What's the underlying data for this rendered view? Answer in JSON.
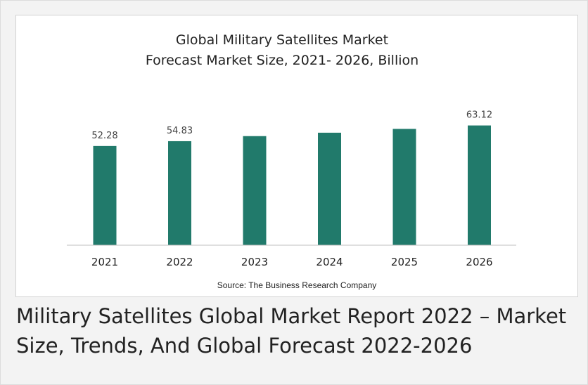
{
  "chart_data": {
    "type": "bar",
    "title": "Global Military Satellites Market",
    "subtitle": "Forecast Market Size, 2021- 2026, Billion",
    "categories": [
      "2021",
      "2022",
      "2023",
      "2024",
      "2025",
      "2026"
    ],
    "values": [
      52.28,
      54.83,
      57.5,
      59.3,
      61.3,
      63.12
    ],
    "data_labels": [
      "52.28",
      "54.83",
      "",
      "",
      "",
      "63.12"
    ],
    "source": "Source: The Business Research Company",
    "bar_color": "#217a6b",
    "grid": false,
    "legend": "none"
  },
  "caption": "Military Satellites Global Market Report 2022 – Market Size, Trends, And Global Forecast 2022-2026"
}
